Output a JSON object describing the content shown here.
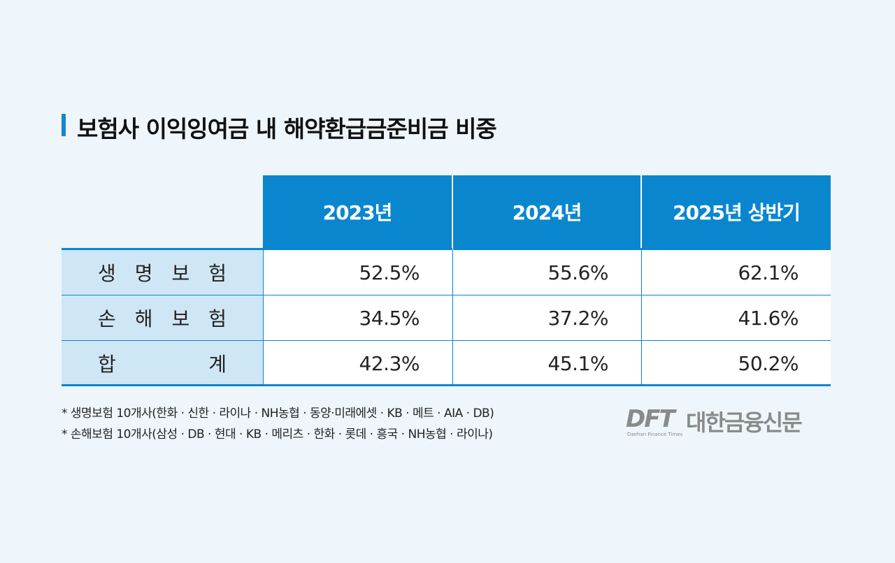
{
  "title": "보험사 이익잉여금 내 해약환급금준비금 비중",
  "chart_data": {
    "type": "table",
    "title": "보험사 이익잉여금 내 해약환급금준비금 비중",
    "columns": [
      "2023년",
      "2024년",
      "2025년 상반기"
    ],
    "rows": [
      {
        "label_chars": [
          "생",
          "명",
          "보",
          "험"
        ],
        "values": [
          "52.5%",
          "55.6%",
          "62.1%"
        ]
      },
      {
        "label_chars": [
          "손",
          "해",
          "보",
          "험"
        ],
        "values": [
          "34.5%",
          "37.2%",
          "41.6%"
        ]
      },
      {
        "label_chars": [
          "합",
          "계"
        ],
        "values": [
          "42.3%",
          "45.1%",
          "50.2%"
        ]
      }
    ]
  },
  "notes": [
    "* 생명보험 10개사(한화 · 신한 · 라이나 · NH농협 · 동양·미래에셋 · KB · 메트 · AIA · DB)",
    "* 손해보험 10개사(삼성 · DB · 현대 · KB · 메리츠 · 한화 · 롯데 · 흥국 · NH농협 · 라이나)"
  ],
  "logo": {
    "mark": "DFT",
    "name": "대한금융신문",
    "subtitle": "Daehan Finance Times"
  },
  "colors": {
    "accent": "#0a86cf",
    "label_bg": "#cfe6f5",
    "background": "#eef6fb",
    "logo": "#8a8a8a"
  }
}
